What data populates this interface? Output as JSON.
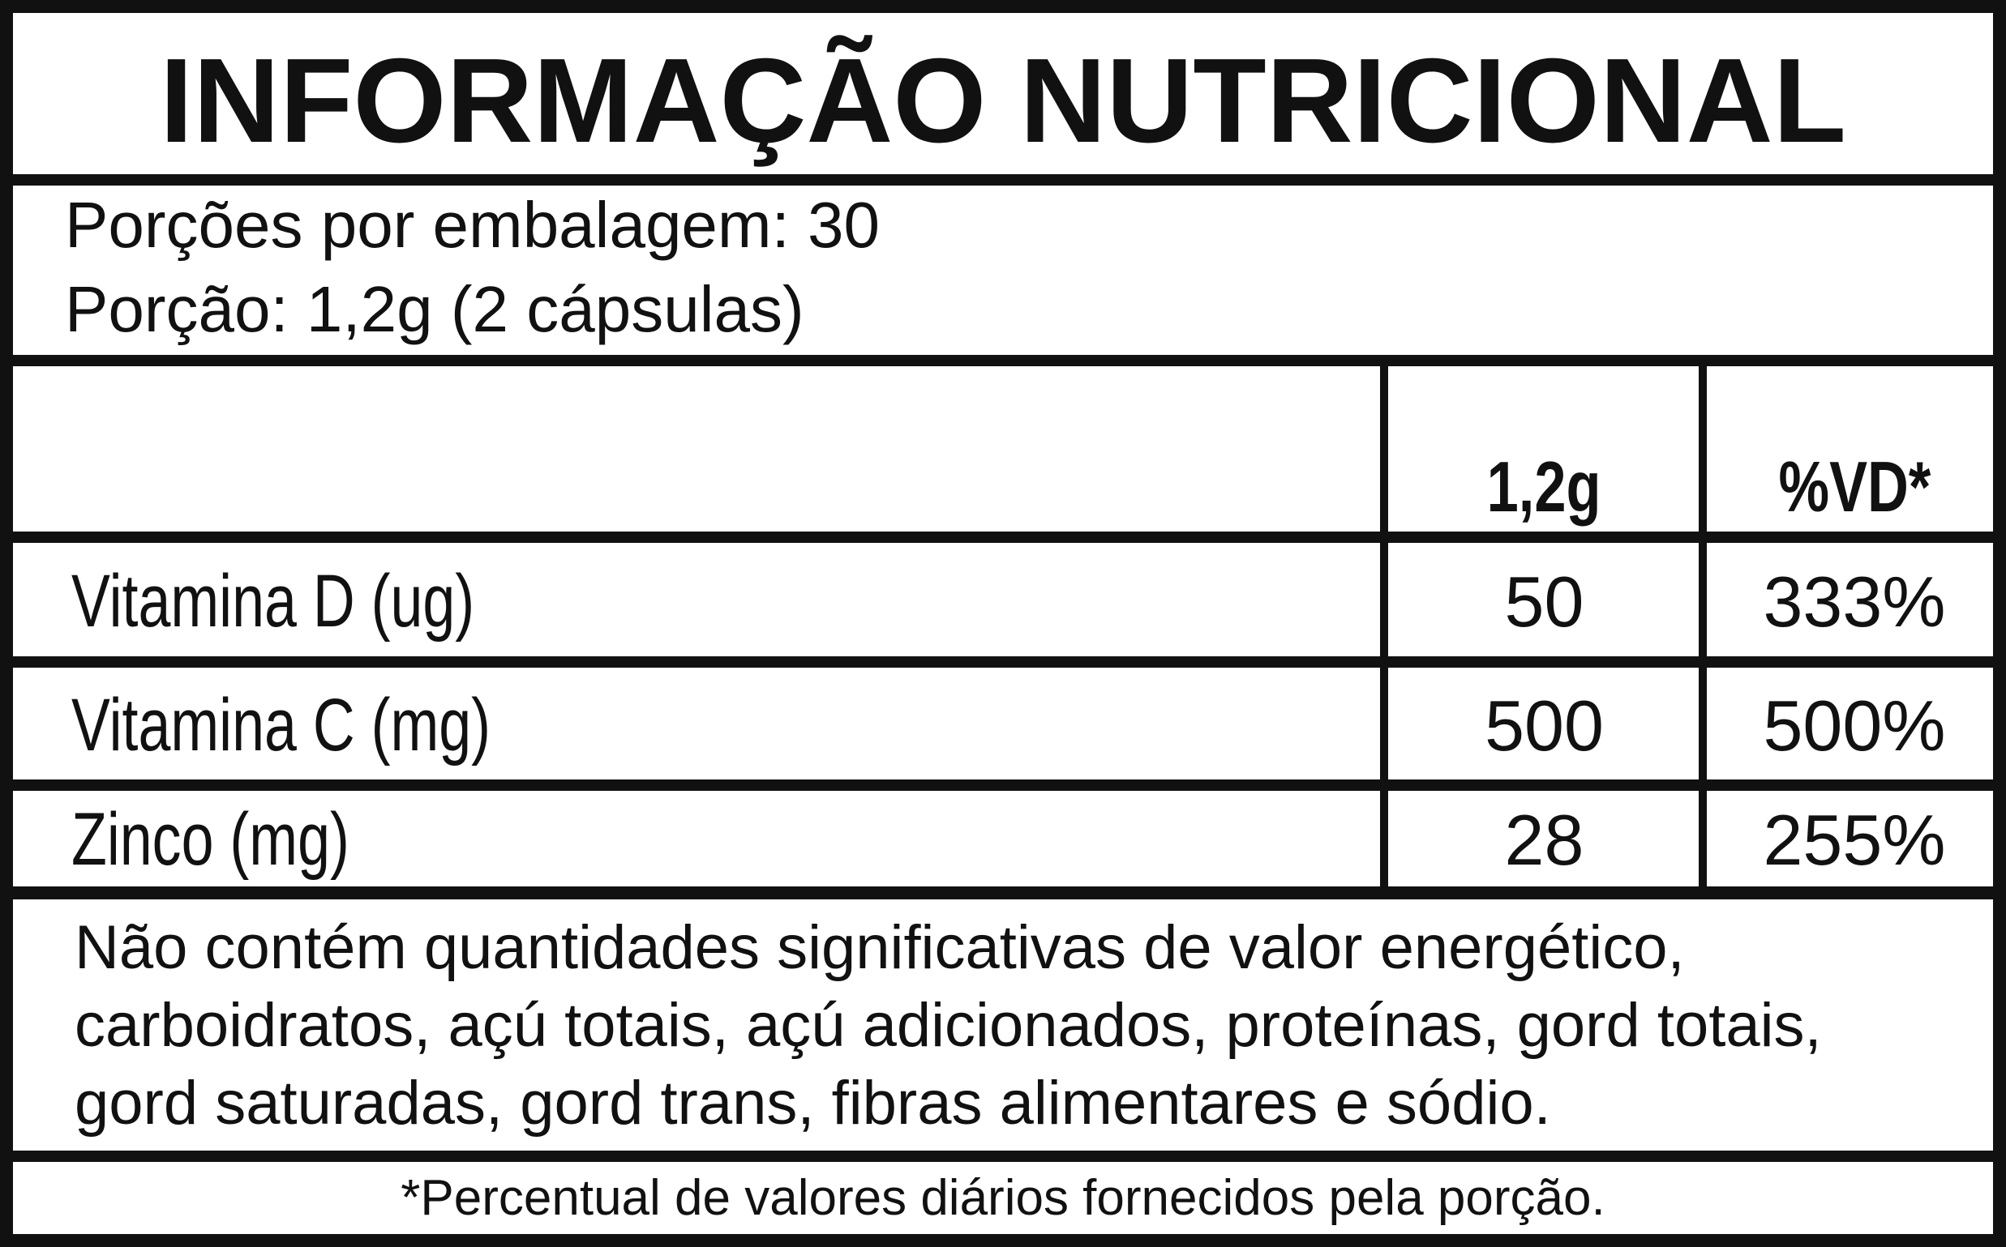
{
  "title": "INFORMAÇÃO NUTRICIONAL",
  "servings_per_package": "Porções por embalagem: 30",
  "serving_size": "Porção: 1,2g (2 cápsulas)",
  "table": {
    "headers": [
      "",
      "1,2g",
      "%VD*"
    ],
    "rows": [
      {
        "nutrient": "Vitamina D (ug)",
        "amount": "50",
        "dv": "333%"
      },
      {
        "nutrient": "Vitamina C (mg)",
        "amount": "500",
        "dv": "500%"
      },
      {
        "nutrient": "Zinco (mg)",
        "amount": "28",
        "dv": "255%"
      }
    ]
  },
  "note_lines": [
    "Não contém quantidades significativas de valor energético,",
    "carboidratos, açú totais, açú adicionados, proteínas, gord totais,",
    "gord saturadas, gord trans, fibras alimentares e sódio."
  ],
  "footnote": "*Percentual de valores diários fornecidos pela porção.",
  "colors": {
    "ink": "#111111",
    "background": "#ffffff"
  }
}
